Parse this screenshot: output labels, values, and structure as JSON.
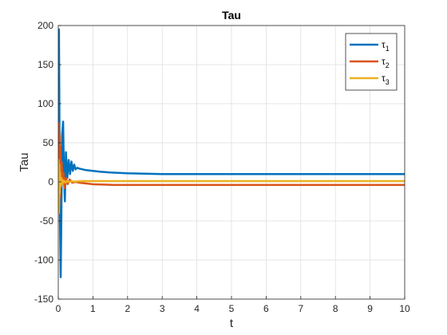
{
  "chart_data": {
    "type": "line",
    "title": "Tau",
    "xlabel": "t",
    "ylabel": "Tau",
    "xlim": [
      0,
      10
    ],
    "ylim": [
      -150,
      200
    ],
    "xticks": [
      0,
      1,
      2,
      3,
      4,
      5,
      6,
      7,
      8,
      9,
      10
    ],
    "yticks": [
      -150,
      -100,
      -50,
      0,
      50,
      100,
      150,
      200
    ],
    "grid": true,
    "legend_position": "top-right",
    "series": [
      {
        "name": "τ1",
        "legend_base": "τ",
        "legend_sub": "1",
        "color": "#0072BD",
        "x": [
          0,
          0.01,
          0.02,
          0.03,
          0.05,
          0.07,
          0.09,
          0.11,
          0.14,
          0.16,
          0.19,
          0.22,
          0.26,
          0.3,
          0.34,
          0.38,
          0.42,
          0.46,
          0.5,
          0.55,
          0.6,
          0.7,
          0.8,
          1.0,
          1.2,
          1.5,
          2.0,
          2.5,
          3.0,
          4.0,
          6.0,
          8.0,
          10.0
        ],
        "y": [
          0,
          120,
          195,
          110,
          -50,
          -122,
          -40,
          60,
          77,
          20,
          -25,
          38,
          5,
          28,
          10,
          26,
          14,
          22,
          16,
          18,
          17,
          16,
          15,
          14,
          13,
          12,
          11,
          10.5,
          10,
          10,
          10,
          10,
          10
        ]
      },
      {
        "name": "τ2",
        "legend_base": "τ",
        "legend_sub": "2",
        "color": "#D95319",
        "x": [
          0,
          0.01,
          0.02,
          0.03,
          0.04,
          0.05,
          0.06,
          0.08,
          0.1,
          0.12,
          0.15,
          0.18,
          0.22,
          0.27,
          0.33,
          0.4,
          0.5,
          0.6,
          0.8,
          1.0,
          1.3,
          1.6,
          2.0,
          3.0,
          5.0,
          10.0
        ],
        "y": [
          0,
          -40,
          75,
          -30,
          60,
          -20,
          45,
          -5,
          25,
          0,
          12,
          -8,
          5,
          -3,
          3,
          -1,
          0,
          -1,
          -2,
          -3,
          -3.5,
          -4,
          -4,
          -4,
          -4,
          -4
        ]
      },
      {
        "name": "τ3",
        "legend_base": "τ",
        "legend_sub": "3",
        "color": "#EDB120",
        "x": [
          0,
          0.01,
          0.02,
          0.03,
          0.04,
          0.05,
          0.07,
          0.09,
          0.12,
          0.15,
          0.2,
          0.25,
          0.3,
          0.4,
          0.5,
          0.7,
          1.0,
          2.0,
          10.0
        ],
        "y": [
          0,
          28,
          -40,
          22,
          -15,
          12,
          -6,
          5,
          -3,
          2,
          -1,
          1,
          0,
          0.5,
          0.5,
          1,
          1,
          1,
          1
        ]
      }
    ]
  }
}
